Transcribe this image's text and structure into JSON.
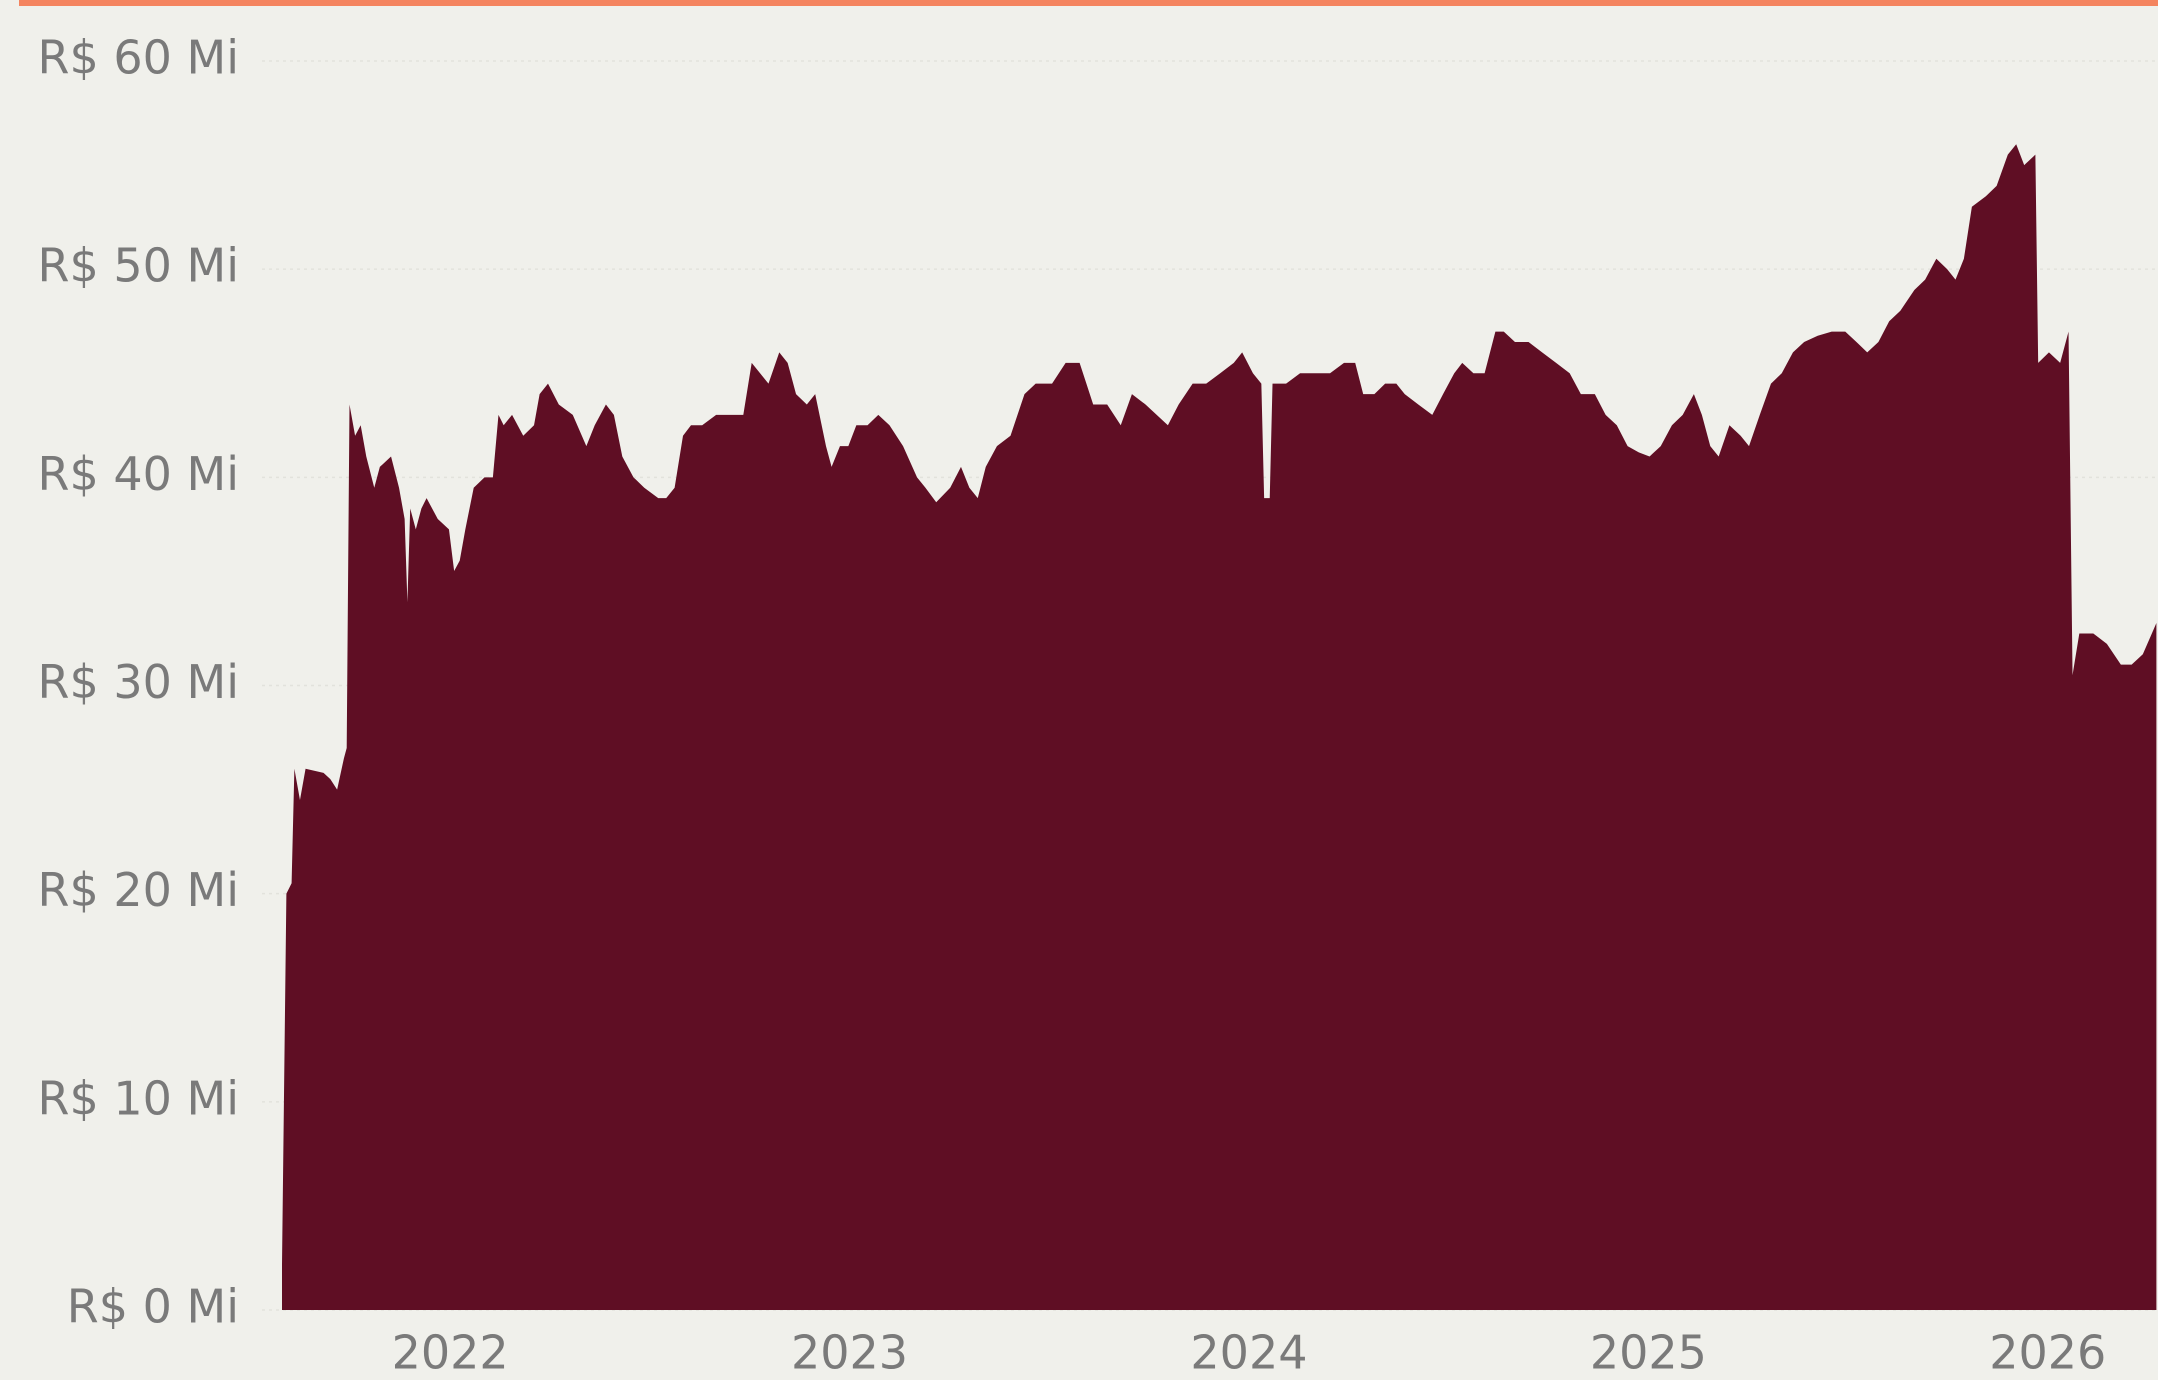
{
  "chart_data": {
    "type": "area",
    "color": "#5f0e24",
    "grid": true,
    "xlim": [
      2021.579,
      2026.276
    ],
    "xticks": [
      2022,
      2023,
      2024,
      2025,
      2026
    ],
    "ylim": [
      0,
      60
    ],
    "yticks": [
      {
        "value": 0,
        "label": "R$ 0 Mi"
      },
      {
        "value": 10,
        "label": "R$ 10 Mi"
      },
      {
        "value": 20,
        "label": "R$ 20 Mi"
      },
      {
        "value": 30,
        "label": "R$ 30 Mi"
      },
      {
        "value": 40,
        "label": "R$ 40 Mi"
      },
      {
        "value": 50,
        "label": "R$ 50 Mi"
      },
      {
        "value": 60,
        "label": "R$ 60 Mi"
      }
    ],
    "x": [
      2021.579,
      2021.59,
      2021.603,
      2021.61,
      2021.624,
      2021.638,
      2021.683,
      2021.7,
      2021.717,
      2021.734,
      2021.741,
      2021.748,
      2021.762,
      2021.776,
      2021.79,
      2021.81,
      2021.824,
      2021.852,
      2021.872,
      2021.886,
      2021.893,
      2021.9,
      2021.914,
      2021.928,
      2021.941,
      2021.969,
      2021.997,
      2022.01,
      2022.024,
      2022.038,
      2022.059,
      2022.086,
      2022.107,
      2022.121,
      2022.134,
      2022.155,
      2022.183,
      2022.21,
      2022.224,
      2022.245,
      2022.272,
      2022.307,
      2022.341,
      2022.362,
      2022.39,
      2022.41,
      2022.431,
      2022.459,
      2022.486,
      2022.521,
      2022.541,
      2022.562,
      2022.583,
      2022.603,
      2022.631,
      2022.666,
      2022.7,
      2022.734,
      2022.755,
      2022.776,
      2022.797,
      2022.824,
      2022.845,
      2022.866,
      2022.893,
      2022.914,
      2022.941,
      2022.955,
      2022.976,
      2022.997,
      2023.017,
      2023.045,
      2023.072,
      2023.1,
      2023.134,
      2023.169,
      2023.19,
      2023.217,
      2023.252,
      2023.279,
      2023.3,
      2023.321,
      2023.341,
      2023.369,
      2023.403,
      2023.438,
      2023.466,
      2023.507,
      2023.541,
      2023.576,
      2023.61,
      2023.645,
      2023.679,
      2023.707,
      2023.741,
      2023.769,
      2023.797,
      2023.824,
      2023.859,
      2023.893,
      2023.928,
      2023.962,
      2023.983,
      2024.01,
      2024.031,
      2024.038,
      2024.052,
      2024.059,
      2024.093,
      2024.128,
      2024.169,
      2024.203,
      2024.238,
      2024.266,
      2024.286,
      2024.314,
      2024.341,
      2024.369,
      2024.39,
      2024.424,
      2024.459,
      2024.486,
      2024.514,
      2024.534,
      2024.562,
      2024.59,
      2024.617,
      2024.638,
      2024.666,
      2024.7,
      2024.734,
      2024.769,
      2024.803,
      2024.831,
      2024.866,
      2024.893,
      2024.921,
      2024.948,
      2024.976,
      2025.003,
      2025.031,
      2025.059,
      2025.086,
      2025.114,
      2025.134,
      2025.155,
      2025.176,
      2025.203,
      2025.231,
      2025.252,
      2025.279,
      2025.307,
      2025.334,
      2025.362,
      2025.39,
      2025.424,
      2025.459,
      2025.493,
      2025.521,
      2025.548,
      2025.576,
      2025.603,
      2025.631,
      2025.666,
      2025.693,
      2025.721,
      2025.748,
      2025.769,
      2025.79,
      2025.81,
      2025.845,
      2025.872,
      2025.9,
      2025.921,
      2025.941,
      2025.969,
      2025.976,
      2026.003,
      2026.031,
      2026.052,
      2026.062,
      2026.079,
      2026.114,
      2026.148,
      2026.183,
      2026.21,
      2026.238,
      2026.272
    ],
    "values": [
      2.2,
      20,
      20.5,
      26,
      24.5,
      26,
      25.8,
      25.5,
      25,
      26.5,
      27,
      43.5,
      42,
      42.5,
      41,
      39.5,
      40.5,
      41,
      39.5,
      38,
      34,
      38.5,
      37.5,
      38.5,
      39,
      38,
      37.5,
      35.5,
      36,
      37.5,
      39.5,
      40,
      40,
      43,
      42.5,
      43,
      42,
      42.5,
      44,
      44.5,
      43.5,
      43,
      41.5,
      42.5,
      43.5,
      43,
      41,
      40,
      39.5,
      39,
      39,
      39.5,
      42,
      42.5,
      42.5,
      43,
      43,
      43,
      45.5,
      45,
      44.5,
      46,
      45.5,
      44,
      43.5,
      44,
      41.5,
      40.5,
      41.5,
      41.5,
      42.5,
      42.5,
      43,
      42.5,
      41.5,
      40,
      39.5,
      38.8,
      39.5,
      40.5,
      39.5,
      39,
      40.5,
      41.5,
      42,
      44,
      44.5,
      44.5,
      45.5,
      45.5,
      43.5,
      43.5,
      42.5,
      44,
      43.5,
      43,
      42.5,
      43.5,
      44.5,
      44.5,
      45,
      45.5,
      46,
      45,
      44.5,
      39,
      39,
      44.5,
      44.5,
      45,
      45,
      45,
      45.5,
      45.5,
      44,
      44,
      44.5,
      44.5,
      44,
      43.5,
      43,
      44,
      45,
      45.5,
      45,
      45,
      47,
      47,
      46.5,
      46.5,
      46,
      45.5,
      45,
      44,
      44,
      43,
      42.5,
      41.5,
      41.2,
      41,
      41.5,
      42.5,
      43,
      44,
      43,
      41.5,
      41,
      42.5,
      42,
      41.5,
      43,
      44.5,
      45,
      46,
      46.5,
      46.8,
      47,
      47,
      46.5,
      46,
      46.5,
      47.5,
      48,
      49,
      49.5,
      50.5,
      50,
      49.5,
      50.5,
      53,
      53.5,
      54,
      55.5,
      56,
      55,
      55.5,
      45.5,
      46,
      45.5,
      47,
      30.5,
      32.5,
      32.5,
      32,
      31,
      31,
      31.5,
      33
    ]
  }
}
